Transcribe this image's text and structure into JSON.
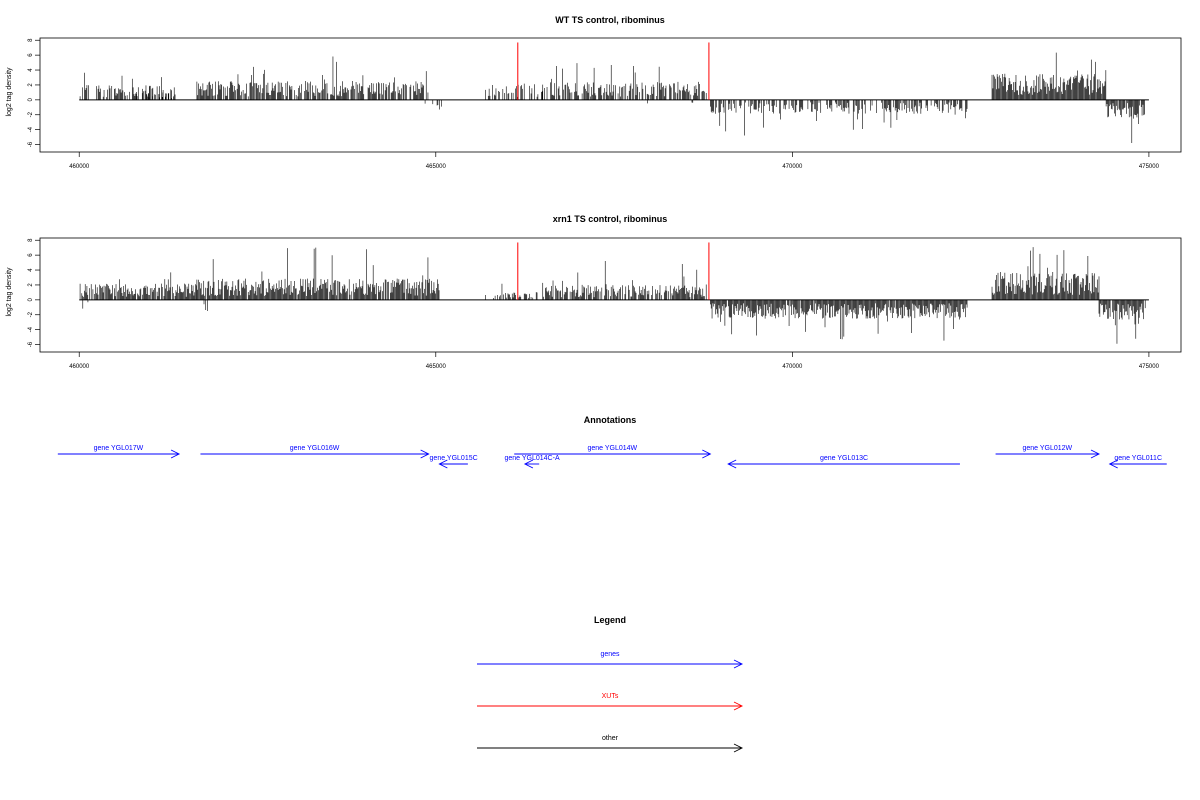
{
  "panels": [
    {
      "title": "WT TS control, ribominus"
    },
    {
      "title": "xrn1 TS control, ribominus"
    }
  ],
  "annotations_title": "Annotations",
  "legend_title": "Legend",
  "legend_items": [
    {
      "label": "genes",
      "color": "#0000ff"
    },
    {
      "label": "XUTs",
      "color": "#ff0000"
    },
    {
      "label": "other",
      "color": "#000000"
    }
  ],
  "genes": [
    {
      "label": "gene YGL017W",
      "start": 459700,
      "end": 461400,
      "strand": "+"
    },
    {
      "label": "gene YGL016W",
      "start": 461700,
      "end": 464900,
      "strand": "+"
    },
    {
      "label": "gene YGL015C",
      "start": 465050,
      "end": 465450,
      "strand": "-"
    },
    {
      "label": "gene YGL014C-A",
      "start": 466250,
      "end": 466450,
      "strand": "-"
    },
    {
      "label": "gene YGL014W",
      "start": 466100,
      "end": 468850,
      "strand": "+"
    },
    {
      "label": "gene YGL013C",
      "start": 469100,
      "end": 472350,
      "strand": "-"
    },
    {
      "label": "gene YGL012W",
      "start": 472850,
      "end": 474300,
      "strand": "+"
    },
    {
      "label": "gene YGL011C",
      "start": 474450,
      "end": 475250,
      "strand": "-"
    }
  ],
  "colors": {
    "genes": "#0000ff",
    "xuts": "#ff0000",
    "other": "#000000",
    "axis": "#000000"
  },
  "chart_data": [
    {
      "type": "bar",
      "title": "WT TS control, ribominus",
      "ylabel": "log2 tag density",
      "xlabel": "",
      "xlim": [
        459450,
        475450
      ],
      "ylim": [
        -7,
        8.3
      ],
      "xticks": [
        460000,
        465000,
        470000,
        475000
      ],
      "yticks": [
        8,
        6,
        4,
        2,
        0,
        -2,
        -4,
        -6
      ],
      "xut_markers": [
        466150,
        468830
      ],
      "xut_marker_height": 7.7,
      "regions": [
        {
          "start": 460000,
          "end": 461350,
          "sign": 1,
          "typ": 1.8,
          "max": 4.2,
          "density": 0.55,
          "seed": 11
        },
        {
          "start": 460800,
          "end": 461350,
          "sign": 1,
          "typ": 1.0,
          "max": 2.2,
          "density": 0.35,
          "seed": 12
        },
        {
          "start": 461650,
          "end": 464900,
          "sign": 1,
          "typ": 2.3,
          "max": 6.1,
          "density": 0.78,
          "seed": 13
        },
        {
          "start": 464850,
          "end": 465100,
          "sign": -1,
          "typ": 1.2,
          "max": 2.5,
          "density": 0.25,
          "seed": 14
        },
        {
          "start": 465700,
          "end": 466500,
          "sign": 1,
          "typ": 2.0,
          "max": 4.5,
          "density": 0.55,
          "seed": 15
        },
        {
          "start": 466500,
          "end": 468850,
          "sign": 1,
          "typ": 2.2,
          "max": 5.2,
          "density": 0.72,
          "seed": 16
        },
        {
          "start": 467800,
          "end": 468850,
          "sign": -1,
          "typ": 0.6,
          "max": 1.2,
          "density": 0.04,
          "seed": 17
        },
        {
          "start": 468850,
          "end": 472450,
          "sign": -1,
          "typ": 1.7,
          "max": 4.9,
          "density": 0.62,
          "seed": 18
        },
        {
          "start": 469400,
          "end": 470300,
          "sign": 1,
          "typ": 0.6,
          "max": 1.0,
          "density": 0.02,
          "seed": 19
        },
        {
          "start": 472800,
          "end": 474400,
          "sign": 1,
          "typ": 3.2,
          "max": 6.5,
          "density": 1.0,
          "seed": 20
        },
        {
          "start": 474400,
          "end": 474950,
          "sign": -1,
          "typ": 2.2,
          "max": 5.8,
          "density": 0.95,
          "seed": 21
        }
      ]
    },
    {
      "type": "bar",
      "title": "xrn1 TS control, ribominus",
      "ylabel": "log2 tag density",
      "xlabel": "",
      "xlim": [
        459450,
        475450
      ],
      "ylim": [
        -7,
        8.3
      ],
      "xticks": [
        460000,
        465000,
        470000,
        475000
      ],
      "yticks": [
        8,
        6,
        4,
        2,
        0,
        -2,
        -4,
        -6
      ],
      "xut_markers": [
        466150,
        468830
      ],
      "xut_marker_height": 7.7,
      "regions": [
        {
          "start": 460000,
          "end": 461650,
          "sign": 1,
          "typ": 2.0,
          "max": 4.6,
          "density": 0.85,
          "seed": 31
        },
        {
          "start": 460050,
          "end": 460150,
          "sign": -1,
          "typ": 1.5,
          "max": 2.3,
          "density": 0.3,
          "seed": 32
        },
        {
          "start": 461650,
          "end": 465050,
          "sign": 1,
          "typ": 2.6,
          "max": 7.2,
          "density": 0.95,
          "seed": 33
        },
        {
          "start": 461750,
          "end": 461850,
          "sign": -1,
          "typ": 1.5,
          "max": 1.9,
          "density": 0.25,
          "seed": 34
        },
        {
          "start": 465700,
          "end": 466500,
          "sign": 1,
          "typ": 1.0,
          "max": 2.6,
          "density": 0.55,
          "seed": 35
        },
        {
          "start": 466500,
          "end": 468850,
          "sign": 1,
          "typ": 1.8,
          "max": 5.5,
          "density": 0.78,
          "seed": 36
        },
        {
          "start": 468850,
          "end": 472450,
          "sign": -1,
          "typ": 2.3,
          "max": 5.8,
          "density": 0.98,
          "seed": 37
        },
        {
          "start": 472800,
          "end": 474300,
          "sign": 1,
          "typ": 3.4,
          "max": 7.6,
          "density": 1.0,
          "seed": 38
        },
        {
          "start": 474300,
          "end": 474950,
          "sign": -1,
          "typ": 2.4,
          "max": 6.2,
          "density": 0.95,
          "seed": 39
        }
      ]
    }
  ]
}
